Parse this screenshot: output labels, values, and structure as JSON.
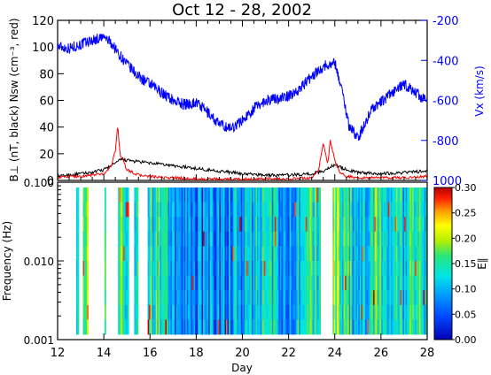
{
  "chart_data": [
    {
      "type": "line",
      "title": "Oct 12 - 28, 2002",
      "ylabel_left": "B⊥ (nT, black) Nsw (cm⁻³, red)",
      "ylabel_right": "Vx (km/s)",
      "xlim": [
        12,
        28
      ],
      "ylim_left": [
        0,
        120
      ],
      "yticks_left": [
        "0",
        "20",
        "40",
        "60",
        "80",
        "100",
        "120"
      ],
      "ylim_right": [
        -1000,
        -200
      ],
      "yticks_right": [
        "1000",
        "-800",
        "-600",
        "-400",
        "-200"
      ],
      "grid": false,
      "colors": {
        "vx": "#0000ff",
        "bperp": "#000000",
        "nsw": "#ff0000"
      },
      "series": [
        {
          "key": "vx",
          "axis": "right",
          "x": [
            12.0,
            12.5,
            13.0,
            13.5,
            14.0,
            14.3,
            14.6,
            15.0,
            15.5,
            16.0,
            16.5,
            17.0,
            17.5,
            18.0,
            18.5,
            19.0,
            19.5,
            20.0,
            20.5,
            21.0,
            21.5,
            22.0,
            22.5,
            23.0,
            23.5,
            24.0,
            24.3,
            24.6,
            25.0,
            25.3,
            25.6,
            26.0,
            26.5,
            27.0,
            27.5,
            28.0
          ],
          "y": [
            -330,
            -340,
            -320,
            -300,
            -285,
            -310,
            -360,
            -420,
            -480,
            -520,
            -560,
            -600,
            -620,
            -610,
            -660,
            -720,
            -740,
            -700,
            -640,
            -600,
            -590,
            -580,
            -540,
            -480,
            -430,
            -410,
            -540,
            -720,
            -790,
            -720,
            -640,
            -610,
            -560,
            -520,
            -560,
            -610
          ]
        },
        {
          "key": "bperp",
          "axis": "left",
          "x": [
            12.0,
            12.5,
            13.0,
            13.5,
            14.0,
            14.5,
            14.8,
            15.0,
            15.5,
            16.0,
            16.5,
            17.0,
            17.5,
            18.0,
            19.0,
            20.0,
            21.0,
            22.0,
            23.0,
            23.5,
            23.8,
            24.0,
            24.5,
            25.0,
            26.0,
            27.0,
            28.0
          ],
          "y": [
            3,
            4,
            5,
            6,
            8,
            13,
            16,
            15,
            14,
            13,
            12,
            11,
            10,
            9,
            7,
            5,
            4,
            4,
            5,
            7,
            10,
            12,
            8,
            6,
            5,
            6,
            7
          ]
        },
        {
          "key": "nsw",
          "axis": "left",
          "x": [
            12.0,
            12.5,
            13.0,
            13.5,
            14.0,
            14.3,
            14.5,
            14.6,
            14.7,
            15.0,
            15.5,
            16.0,
            16.5,
            17.0,
            18.0,
            19.0,
            20.0,
            21.0,
            22.0,
            23.0,
            23.3,
            23.5,
            23.7,
            23.8,
            24.0,
            24.2,
            24.5,
            25.0,
            26.0,
            27.0,
            28.0
          ],
          "y": [
            2,
            3,
            3,
            4,
            5,
            10,
            22,
            42,
            20,
            8,
            4,
            3,
            2,
            2,
            1,
            1,
            1,
            1,
            1,
            2,
            8,
            28,
            12,
            30,
            15,
            6,
            3,
            2,
            2,
            2,
            3
          ]
        }
      ]
    },
    {
      "type": "heatmap",
      "xlabel": "Day",
      "ylabel": "Frequency (Hz)",
      "xlim": [
        12,
        28
      ],
      "xticks": [
        "12",
        "14",
        "16",
        "18",
        "20",
        "22",
        "24",
        "26",
        "28"
      ],
      "ylim": [
        0.001,
        0.1
      ],
      "yscale": "log",
      "yticks": [
        "0.001",
        "0.010",
        "0.100"
      ],
      "colorbar": {
        "label": "E∥",
        "range": [
          0,
          0.3
        ],
        "ticks": [
          "0.00",
          "0.05",
          "0.10",
          "0.15",
          "0.20",
          "0.25",
          "0.30"
        ],
        "colormap": "rainbow"
      },
      "data_gaps_day_ranges": [
        [
          12.0,
          12.8
        ],
        [
          12.9,
          13.1
        ],
        [
          13.3,
          14.0
        ],
        [
          14.1,
          14.6
        ],
        [
          15.1,
          15.3
        ],
        [
          15.5,
          15.9
        ],
        [
          23.4,
          23.9
        ]
      ],
      "mean_value_profile": {
        "x": [
          12.8,
          13.2,
          14.0,
          14.6,
          15.0,
          15.4,
          16.0,
          16.4,
          17.0,
          17.5,
          18.0,
          18.5,
          19.0,
          19.5,
          20.0,
          20.5,
          21.0,
          21.5,
          22.0,
          22.5,
          23.0,
          24.0,
          24.5,
          25.0,
          25.5,
          26.0,
          26.5,
          27.0,
          27.5,
          28.0
        ],
        "values": [
          0.16,
          0.17,
          0.18,
          0.17,
          0.15,
          0.16,
          0.15,
          0.13,
          0.09,
          0.07,
          0.06,
          0.07,
          0.08,
          0.09,
          0.1,
          0.11,
          0.12,
          0.11,
          0.1,
          0.12,
          0.14,
          0.17,
          0.15,
          0.12,
          0.14,
          0.15,
          0.13,
          0.12,
          0.13,
          0.12
        ]
      }
    }
  ]
}
